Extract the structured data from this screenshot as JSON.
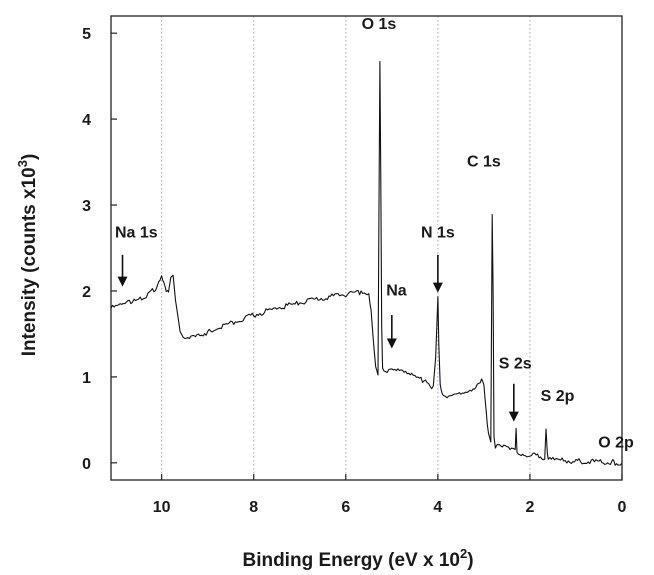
{
  "chart_data": {
    "type": "line",
    "xlabel": "Binding Energy (eV x 10",
    "xlabel_sup": "2",
    "xlabel_end": ")",
    "ylabel": "Intensity (counts x10",
    "ylabel_sup": "3",
    "ylabel_end": ")",
    "xlim": [
      11.1,
      0
    ],
    "ylim": [
      -0.2,
      5.2
    ],
    "x_reversed": true,
    "grid": "vertical-dotted",
    "x_ticks": [
      10,
      8,
      6,
      4,
      2,
      0
    ],
    "x_tick_labels": [
      "10",
      "8",
      "6",
      "4",
      "2",
      "0"
    ],
    "y_ticks": [
      0,
      1,
      2,
      3,
      4,
      5
    ],
    "y_tick_labels": [
      "0",
      "1",
      "2",
      "3",
      "4",
      "5"
    ],
    "series": [
      {
        "x": [
          11.1,
          10.9,
          10.6,
          10.3,
          10.1,
          10.0,
          9.95,
          9.9,
          9.85,
          9.8,
          9.75,
          9.7,
          9.6,
          9.5,
          9.3,
          9.0,
          8.5,
          8.0,
          7.5,
          7.0,
          6.5,
          6.0,
          5.7,
          5.5,
          5.45,
          5.4,
          5.35,
          5.3,
          5.28,
          5.26,
          5.24,
          5.22,
          5.2,
          5.1,
          4.9,
          4.7,
          4.5,
          4.3,
          4.1,
          4.05,
          4.0,
          3.98,
          3.95,
          3.9,
          3.8,
          3.6,
          3.4,
          3.2,
          3.05,
          3.0,
          2.95,
          2.9,
          2.85,
          2.82,
          2.8,
          2.78,
          2.75,
          2.7,
          2.6,
          2.4,
          2.32,
          2.3,
          2.28,
          2.25,
          2.1,
          1.8,
          1.68,
          1.65,
          1.62,
          1.6,
          1.4,
          1.0,
          0.5,
          0.25,
          0.2,
          0.15,
          0.0
        ],
        "y": [
          1.8,
          1.83,
          1.88,
          1.95,
          2.05,
          2.15,
          2.1,
          2.02,
          2.0,
          2.18,
          2.2,
          1.9,
          1.5,
          1.43,
          1.46,
          1.52,
          1.62,
          1.72,
          1.8,
          1.86,
          1.92,
          1.96,
          1.98,
          1.94,
          1.75,
          1.4,
          1.1,
          1.02,
          2.8,
          4.7,
          3.3,
          1.6,
          1.1,
          1.08,
          1.07,
          1.04,
          1.0,
          0.95,
          0.88,
          1.2,
          1.95,
          1.4,
          0.92,
          0.8,
          0.78,
          0.78,
          0.8,
          0.85,
          0.95,
          0.9,
          0.6,
          0.35,
          0.25,
          2.9,
          2.0,
          0.3,
          0.2,
          0.19,
          0.18,
          0.16,
          0.15,
          0.4,
          0.15,
          0.12,
          0.1,
          0.08,
          0.05,
          0.42,
          0.1,
          0.04,
          0.03,
          0.02,
          0.01,
          0.0,
          0.06,
          0.0,
          0.0
        ]
      }
    ],
    "annotations": [
      {
        "text": "O 1s",
        "label_x": 5.28,
        "label_y": 5.05
      },
      {
        "text": "Na 1s",
        "label_x": 10.55,
        "label_y": 2.62,
        "arrow_x": 10.85,
        "arrow_from": 2.42,
        "arrow_to": 2.05
      },
      {
        "text": "Na",
        "label_x": 4.9,
        "label_y": 1.95,
        "arrow_x": 5.0,
        "arrow_from": 1.72,
        "arrow_to": 1.33
      },
      {
        "text": "N 1s",
        "label_x": 4.0,
        "label_y": 2.62,
        "arrow_x": 4.0,
        "arrow_from": 2.42,
        "arrow_to": 1.98
      },
      {
        "text": "C 1s",
        "label_x": 3.0,
        "label_y": 3.45
      },
      {
        "text": "S 2s",
        "label_x": 2.32,
        "label_y": 1.1,
        "arrow_x": 2.35,
        "arrow_from": 0.92,
        "arrow_to": 0.48
      },
      {
        "text": "S 2p",
        "label_x": 1.4,
        "label_y": 0.72
      },
      {
        "text": "O 2p",
        "label_x": 0.13,
        "label_y": 0.18
      }
    ]
  }
}
